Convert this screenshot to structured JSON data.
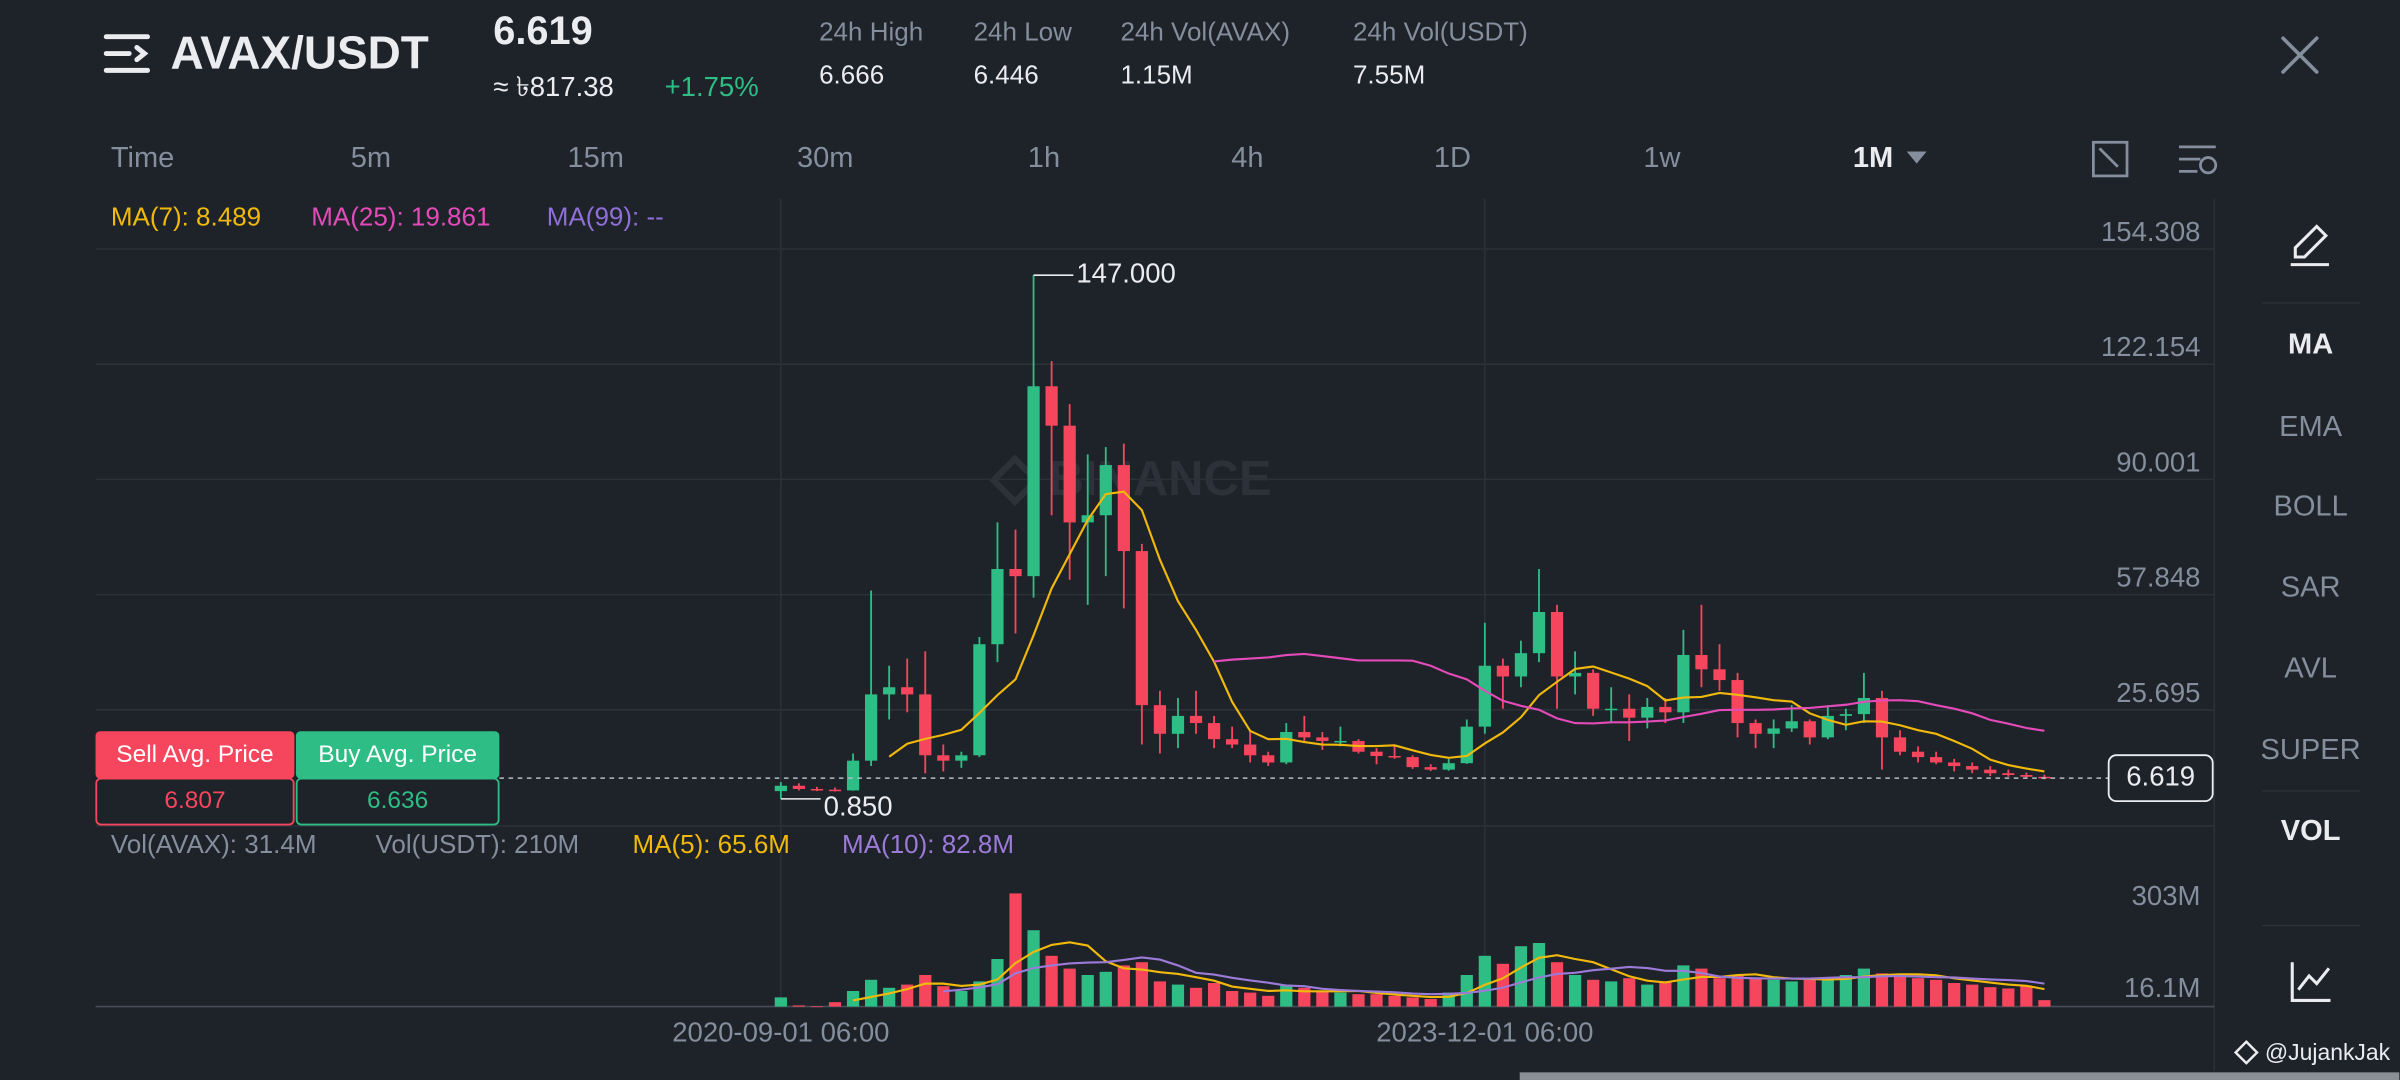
{
  "header": {
    "pair": "AVAX/USDT",
    "fiat": "≈ ৳817.38",
    "change": "+1.75%",
    "stats": [
      {
        "label": "24h High",
        "value": "6.666"
      },
      {
        "label": "24h Low",
        "value": "6.446"
      },
      {
        "label": "24h Vol(AVAX)",
        "value": "1.15M"
      },
      {
        "label": "24h Vol(USDT)",
        "value": "7.55M"
      }
    ]
  },
  "intervals": [
    "Time",
    "5m",
    "15m",
    "30m",
    "1h",
    "4h",
    "1D",
    "1w",
    "1M"
  ],
  "indicators": [
    "MA",
    "EMA",
    "BOLL",
    "SAR",
    "AVL",
    "SUPER",
    "VOL"
  ],
  "watermark": "BINANCE",
  "credit": "@JujankJak",
  "chart_data": {
    "type": "candlestick",
    "last_price": 6.619,
    "categories": [
      "2020-09-01 06:00",
      null,
      null,
      null,
      null,
      null,
      null,
      null,
      null,
      null,
      null,
      null,
      null,
      null,
      null,
      null,
      null,
      null,
      null,
      null,
      null,
      null,
      null,
      null,
      null,
      null,
      null,
      null,
      null,
      null,
      null,
      null,
      null,
      null,
      null,
      null,
      null,
      null,
      null,
      "2023-12-01 06:00",
      null,
      null,
      null,
      null,
      null,
      null,
      null,
      null,
      null,
      null,
      null,
      null,
      null,
      null,
      null,
      null,
      null,
      null,
      null,
      null,
      null,
      null,
      null,
      null,
      null,
      null,
      null,
      null,
      null,
      null,
      null
    ],
    "open": [
      3.0,
      4.5,
      3.6,
      3.4,
      3.2,
      11.5,
      30,
      32,
      30,
      13,
      11.5,
      13,
      44,
      65,
      63,
      116,
      105,
      78,
      80,
      94,
      70,
      27,
      19,
      24,
      22,
      17.5,
      16,
      13,
      11,
      19.5,
      18,
      17,
      17,
      14,
      12.8,
      12.5,
      9.7,
      9,
      10.8,
      21,
      38,
      35,
      41.5,
      53,
      35,
      36,
      26,
      26,
      23.5,
      26.5,
      25,
      41,
      37,
      34,
      22,
      19,
      20.5,
      22.5,
      18,
      24,
      24.5,
      29,
      18,
      14,
      12.5,
      11,
      10,
      9,
      8,
      7.5,
      7
    ],
    "high": [
      5.5,
      5.2,
      4.2,
      4.0,
      13.5,
      59,
      38,
      40,
      42,
      16,
      14,
      46,
      78,
      76,
      147,
      123,
      111,
      97,
      99,
      100,
      72,
      31,
      29,
      31,
      24,
      21,
      20,
      14,
      22,
      24,
      19.5,
      21,
      17.5,
      15,
      15.5,
      13,
      10.5,
      12,
      23,
      50,
      40,
      45,
      65,
      55,
      42,
      37,
      32,
      30,
      29,
      29,
      48,
      55,
      44,
      36,
      23,
      23,
      27,
      23,
      27,
      26,
      36,
      31,
      20,
      15.5,
      14,
      12,
      11,
      10,
      9,
      8.2,
      7.6
    ],
    "low": [
      0.85,
      3.2,
      3.0,
      2.9,
      3.1,
      10,
      23,
      25,
      8,
      8.5,
      9.5,
      12.5,
      39,
      47,
      57,
      80,
      62,
      55,
      63,
      54,
      16,
      13.5,
      15,
      19,
      15,
      15,
      11,
      10,
      10.5,
      16.5,
      14.5,
      15.5,
      13.5,
      10.5,
      12,
      9.2,
      8.6,
      8.7,
      10.6,
      19,
      26,
      32,
      39,
      26,
      30,
      24,
      22,
      17,
      20.5,
      22,
      22,
      32,
      31,
      18,
      15,
      15,
      19.5,
      16,
      17.5,
      20,
      22,
      9,
      13,
      11,
      10.5,
      8.5,
      8,
      7.2,
      7,
      6.5,
      6.3
    ],
    "close": [
      4.5,
      3.6,
      3.4,
      3.2,
      11.5,
      30,
      32,
      30,
      13,
      11.5,
      13,
      44,
      65,
      63,
      116,
      105,
      78,
      80,
      94,
      70,
      27,
      19,
      24,
      22,
      17.5,
      16,
      13,
      11,
      19.5,
      18,
      17,
      17,
      14,
      12.8,
      12.5,
      9.7,
      9,
      10.8,
      21,
      38,
      35,
      41.5,
      53,
      35,
      36,
      26,
      26,
      23.5,
      26.5,
      25,
      41,
      37,
      34,
      22,
      19,
      20.5,
      22.5,
      18,
      24,
      24.5,
      29,
      18,
      14,
      12.5,
      11,
      10,
      9,
      8,
      7.5,
      7,
      6.619
    ],
    "high_labels": [
      null,
      null,
      null,
      null,
      null,
      null,
      null,
      null,
      null,
      null,
      null,
      null,
      null,
      null,
      "147.000",
      null,
      null,
      null,
      null,
      null,
      null,
      null,
      null,
      null,
      null,
      null,
      null,
      null,
      null,
      null,
      null,
      null,
      null,
      null,
      null,
      null,
      null,
      null,
      null,
      null,
      null,
      null,
      null,
      null,
      null,
      null,
      null,
      null,
      null,
      null,
      null,
      null,
      null,
      null,
      null,
      null,
      null,
      null,
      null,
      null,
      null,
      null,
      null,
      null,
      null,
      null,
      null,
      null,
      null,
      null,
      null
    ],
    "low_labels": [
      "0.850",
      null,
      null,
      null,
      null,
      null,
      null,
      null,
      null,
      null,
      null,
      null,
      null,
      null,
      null,
      null,
      null,
      null,
      null,
      null,
      null,
      null,
      null,
      null,
      null,
      null,
      null,
      null,
      null,
      null,
      null,
      null,
      null,
      null,
      null,
      null,
      null,
      null,
      null,
      null,
      null,
      null,
      null,
      null,
      null,
      null,
      null,
      null,
      null,
      null,
      null,
      null,
      null,
      null,
      null,
      null,
      null,
      null,
      null,
      null,
      null,
      null,
      null,
      null,
      null,
      null,
      null,
      null,
      null,
      null,
      null
    ],
    "up_color": "#2ebd85",
    "down_color": "#f6465d",
    "ylim": [
      -6.75,
      168.3
    ],
    "yticks": [
      154.308,
      122.154,
      90.001,
      57.848,
      25.695
    ],
    "grid": true,
    "ma_lines": [
      {
        "legend": "MA(7): 8.489",
        "color": "#f0b90b",
        "values": [
          null,
          null,
          null,
          null,
          null,
          null,
          12.6,
          16.2,
          17.6,
          18.7,
          20.1,
          24.8,
          29.8,
          34.2,
          46.5,
          59.6,
          69.1,
          78.7,
          85.9,
          86.6,
          81.4,
          67.6,
          56,
          48,
          39.1,
          27.9,
          19.8,
          17.5,
          17.6,
          16.7,
          16,
          15.9,
          15.6,
          15.6,
          15.8,
          14.4,
          13.1,
          12.3,
          12.8,
          16.3,
          19.4,
          23.6,
          29.8,
          33.5,
          37.1,
          37.8,
          36.1,
          34.4,
          32.3,
          28.3,
          29.1,
          29.3,
          30.4,
          29.9,
          29.2,
          28.4,
          28,
          24.7,
          22.9,
          21.5,
          22.5,
          22.4,
          21.4,
          20,
          19,
          17,
          14.8,
          11.8,
          10.3,
          9.3,
          8.489
        ]
      },
      {
        "legend": "MA(25): 19.861",
        "color": "#e24bb8",
        "values": [
          null,
          null,
          null,
          null,
          null,
          null,
          null,
          null,
          null,
          null,
          null,
          null,
          null,
          null,
          null,
          null,
          null,
          null,
          null,
          null,
          null,
          null,
          null,
          null,
          39.2,
          39.7,
          40,
          40.3,
          41,
          41.3,
          40.7,
          40.1,
          39.5,
          39.5,
          39.5,
          39.4,
          38,
          35.8,
          34.2,
          31,
          28.2,
          26.8,
          25.7,
          23.3,
          22,
          21.9,
          22.2,
          22.2,
          22.4,
          22.7,
          23.7,
          24.6,
          25.6,
          25.7,
          25.7,
          25.8,
          26.1,
          26.2,
          26.7,
          27.1,
          27.9,
          28.3,
          28.4,
          28.1,
          27,
          26,
          24.7,
          22.9,
          21.8,
          20.6,
          19.861
        ]
      },
      {
        "legend": "MA(99): --",
        "color": "#8f6fd8"
      }
    ],
    "avg_prices": [
      {
        "label": "Sell Avg. Price",
        "value": 6.807,
        "color": "#f6465d"
      },
      {
        "label": "Buy Avg. Price",
        "value": 6.636,
        "color": "#2ebd85"
      }
    ],
    "volume": {
      "values": [
        40,
        15,
        12,
        25,
        60,
        95,
        70,
        80,
        110,
        75,
        60,
        90,
        160,
        365,
        250,
        170,
        130,
        110,
        120,
        140,
        150,
        90,
        80,
        70,
        85,
        60,
        55,
        45,
        80,
        70,
        60,
        55,
        50,
        50,
        45,
        40,
        35,
        55,
        110,
        170,
        145,
        200,
        210,
        150,
        110,
        95,
        90,
        100,
        80,
        90,
        140,
        130,
        100,
        110,
        100,
        95,
        90,
        95,
        100,
        110,
        130,
        115,
        105,
        100,
        95,
        85,
        80,
        72,
        68,
        76.6,
        31.4
      ],
      "ylim": [
        11.3,
        456
      ],
      "yticks": [
        {
          "value": 303,
          "label": "303M"
        },
        {
          "value": 16.1,
          "label": "16.1M"
        }
      ],
      "legend": [
        {
          "text": "Vol(AVAX): 31.4M",
          "color": "#848e9c"
        },
        {
          "text": "Vol(USDT): 210M",
          "color": "#848e9c"
        }
      ],
      "ma_lines": [
        {
          "legend": "MA(5): 65.6M",
          "color": "#f0b90b",
          "values": [
            null,
            null,
            null,
            null,
            30.4,
            41.4,
            52.4,
            66,
            83,
            83,
            76,
            80,
            96,
            147,
            182,
            204,
            212,
            202,
            153,
            131,
            127,
            119,
            113,
            103,
            92,
            74,
            67,
            60,
            62,
            59,
            59,
            59,
            60,
            54,
            49,
            45,
            41,
            42,
            54,
            79,
            100,
            133,
            164,
            172,
            160,
            150,
            128,
            106,
            92,
            87,
            96,
            104,
            104,
            110,
            112,
            103,
            99,
            98,
            96,
            98,
            105,
            110,
            112,
            112,
            109,
            100,
            93,
            86.4,
            80,
            76.3,
            65.6
          ]
        },
        {
          "legend": "MA(10): 82.8M",
          "color": "#9c7bd8",
          "values": [
            null,
            null,
            null,
            null,
            null,
            null,
            null,
            null,
            null,
            59,
            64,
            71,
            81,
            115,
            132,
            140,
            146,
            149,
            150,
            157,
            165,
            158,
            140,
            117,
            111,
            101,
            93,
            86,
            77,
            75,
            67,
            63,
            60,
            58,
            56,
            52,
            50,
            51,
            54,
            61,
            70,
            87,
            102,
            113,
            117,
            125,
            130,
            135,
            132,
            123,
            123,
            116,
            105,
            101,
            100,
            99,
            99,
            99,
            101,
            103,
            103,
            106,
            107,
            105,
            103,
            102,
            99,
            96,
            94,
            91,
            82.8
          ]
        }
      ]
    }
  }
}
